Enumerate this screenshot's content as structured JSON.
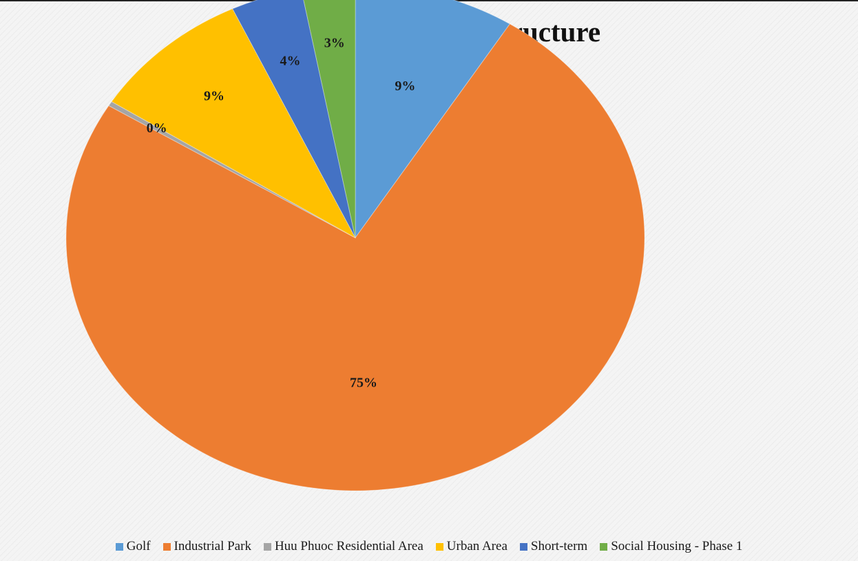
{
  "chart_data": {
    "type": "pie",
    "title": "Loan Outstanding Structure",
    "categories": [
      "Golf",
      "Industrial Park",
      "Huu Phuoc Residential Area",
      "Urban Area",
      "Short-term",
      "Social Housing - Phase 1"
    ],
    "values": [
      9,
      75,
      0.3,
      9,
      4,
      3
    ],
    "labels": [
      "9%",
      "75%",
      "0%",
      "9%",
      "4%",
      "3%"
    ],
    "colors": [
      "#5b9bd5",
      "#ed7d31",
      "#a5a5a5",
      "#ffc000",
      "#4472c4",
      "#70ad47"
    ],
    "side_colors": [
      "#3f7bb3",
      "#8a4412",
      "#7a7a7a",
      "#c99500",
      "#2f55a0",
      "#4f8a30"
    ],
    "legend_position": "bottom",
    "style": "3d-tilted"
  }
}
